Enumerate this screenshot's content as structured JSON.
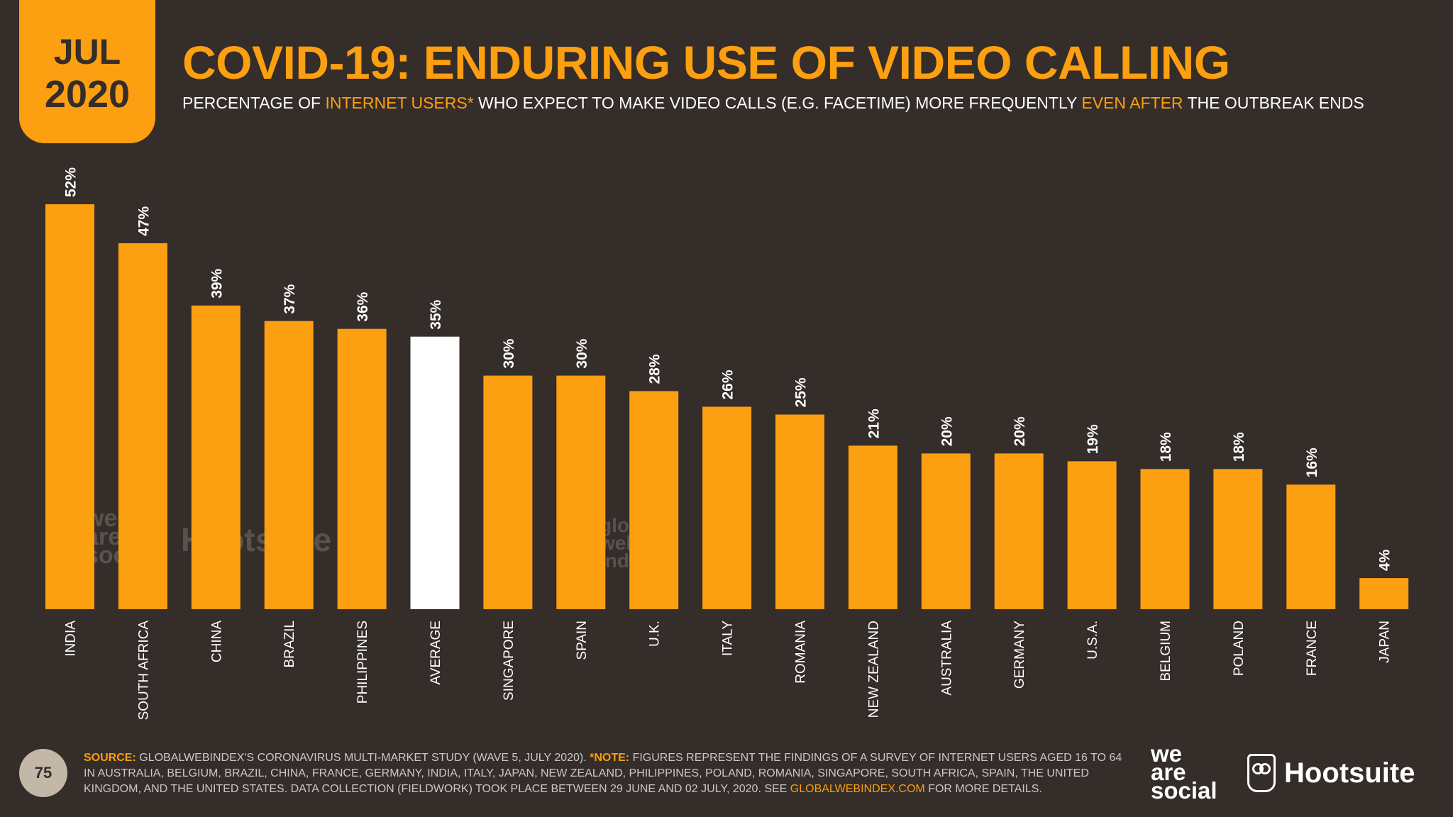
{
  "badge": {
    "month": "JUL",
    "year": "2020"
  },
  "title": "COVID-19: ENDURING USE OF VIDEO CALLING",
  "subtitle": {
    "p1": "PERCENTAGE OF ",
    "h1": "INTERNET USERS*",
    "p2": " WHO EXPECT TO MAKE VIDEO CALLS (E.G. FACETIME) MORE FREQUENTLY ",
    "h2": "EVEN AFTER",
    "p3": " THE OUTBREAK ENDS"
  },
  "colors": {
    "background": "#342d29",
    "bar": "#fc9f10",
    "average_bar": "#ffffff",
    "accent": "#fc9f10"
  },
  "chart_data": {
    "type": "bar",
    "title": "COVID-19: ENDURING USE OF VIDEO CALLING",
    "categories": [
      "INDIA",
      "SOUTH AFRICA",
      "CHINA",
      "BRAZIL",
      "PHILIPPINES",
      "AVERAGE",
      "SINGAPORE",
      "SPAIN",
      "U.K.",
      "ITALY",
      "ROMANIA",
      "NEW ZEALAND",
      "AUSTRALIA",
      "GERMANY",
      "U.S.A.",
      "BELGIUM",
      "POLAND",
      "FRANCE",
      "JAPAN"
    ],
    "values": [
      52,
      47,
      39,
      37,
      36,
      35,
      30,
      30,
      28,
      26,
      25,
      21,
      20,
      20,
      19,
      18,
      18,
      16,
      4
    ],
    "value_labels": [
      "52%",
      "47%",
      "39%",
      "37%",
      "36%",
      "35%",
      "30%",
      "30%",
      "28%",
      "26%",
      "25%",
      "21%",
      "20%",
      "20%",
      "19%",
      "18%",
      "18%",
      "16%",
      "4%"
    ],
    "highlight_category": "AVERAGE",
    "unit": "%",
    "ylim": [
      0,
      52
    ],
    "grid": false,
    "legend": "none"
  },
  "watermarks": {
    "we_are_social": [
      "we",
      "are",
      "social"
    ],
    "hootsuite": "Hootsuite",
    "gwi": [
      "global",
      "web",
      "index"
    ]
  },
  "footer": {
    "page_number": "75",
    "source_label": "SOURCE:",
    "source_text": " GLOBALWEBINDEX'S CORONAVIRUS MULTI-MARKET STUDY (WAVE 5, JULY 2020). ",
    "note_label": "*NOTE:",
    "note_text": " FIGURES REPRESENT THE FINDINGS OF A SURVEY OF INTERNET USERS AGED 16 TO 64 IN AUSTRALIA, BELGIUM, BRAZIL, CHINA, FRANCE, GERMANY, INDIA, ITALY, JAPAN, NEW ZEALAND, PHILIPPINES, POLAND, ROMANIA, SINGAPORE, SOUTH AFRICA, SPAIN, THE UNITED KINGDOM, AND THE UNITED STATES. DATA COLLECTION (FIELDWORK) TOOK PLACE BETWEEN 29 JUNE AND 02 JULY, 2020. SEE ",
    "link": "GLOBALWEBINDEX.COM",
    "end_text": " FOR MORE DETAILS."
  },
  "logos": {
    "we_are_social": [
      "we",
      "are",
      "social"
    ],
    "hootsuite": "Hootsuite"
  }
}
